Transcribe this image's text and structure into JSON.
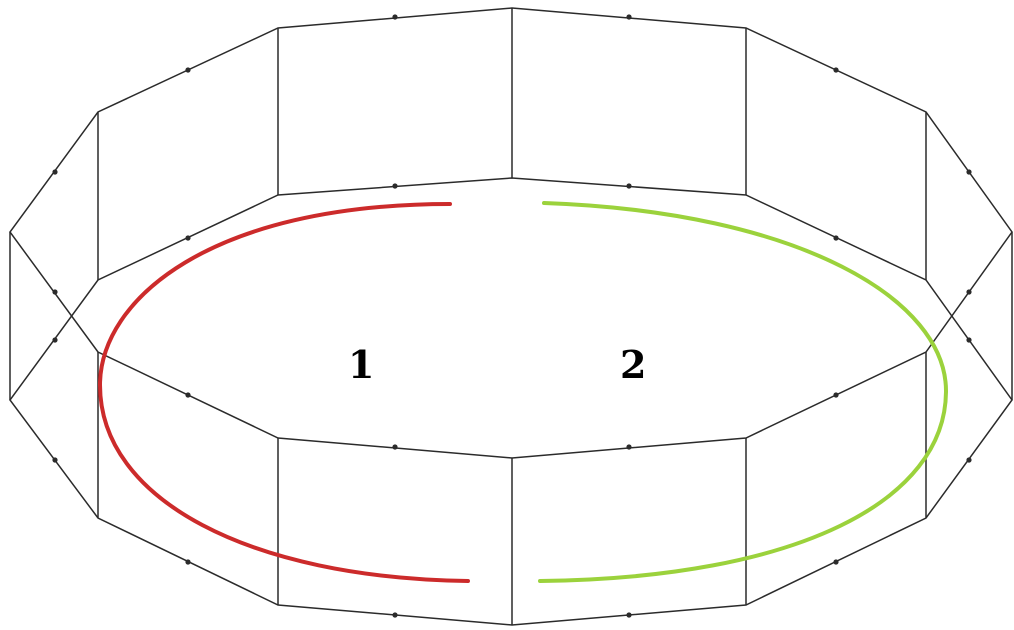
{
  "labels": {
    "arc1": "1",
    "arc2": "2"
  },
  "colors": {
    "frame": "#2b2b2b",
    "arc1": "#cc2b2b",
    "arc2": "#9bd23c"
  }
}
